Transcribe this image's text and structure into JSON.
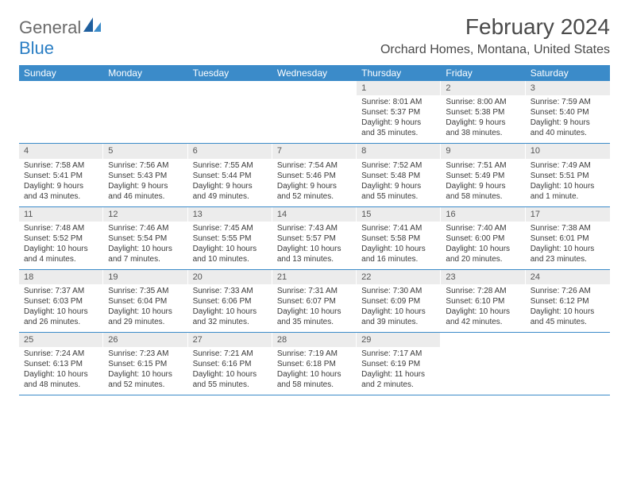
{
  "logo": {
    "textA": "General",
    "textB": "Blue"
  },
  "title": "February 2024",
  "location": "Orchard Homes, Montana, United States",
  "colors": {
    "header_bg": "#3b8bc9",
    "header_text": "#ffffff",
    "daynum_bg": "#ececec",
    "week_border": "#3b8bc9",
    "logo_gray": "#6a6a6a",
    "logo_blue": "#2a7ec4"
  },
  "dayNames": [
    "Sunday",
    "Monday",
    "Tuesday",
    "Wednesday",
    "Thursday",
    "Friday",
    "Saturday"
  ],
  "weeks": [
    [
      null,
      null,
      null,
      null,
      {
        "n": "1",
        "sr": "8:01 AM",
        "ss": "5:37 PM",
        "dl": "9 hours and 35 minutes."
      },
      {
        "n": "2",
        "sr": "8:00 AM",
        "ss": "5:38 PM",
        "dl": "9 hours and 38 minutes."
      },
      {
        "n": "3",
        "sr": "7:59 AM",
        "ss": "5:40 PM",
        "dl": "9 hours and 40 minutes."
      }
    ],
    [
      {
        "n": "4",
        "sr": "7:58 AM",
        "ss": "5:41 PM",
        "dl": "9 hours and 43 minutes."
      },
      {
        "n": "5",
        "sr": "7:56 AM",
        "ss": "5:43 PM",
        "dl": "9 hours and 46 minutes."
      },
      {
        "n": "6",
        "sr": "7:55 AM",
        "ss": "5:44 PM",
        "dl": "9 hours and 49 minutes."
      },
      {
        "n": "7",
        "sr": "7:54 AM",
        "ss": "5:46 PM",
        "dl": "9 hours and 52 minutes."
      },
      {
        "n": "8",
        "sr": "7:52 AM",
        "ss": "5:48 PM",
        "dl": "9 hours and 55 minutes."
      },
      {
        "n": "9",
        "sr": "7:51 AM",
        "ss": "5:49 PM",
        "dl": "9 hours and 58 minutes."
      },
      {
        "n": "10",
        "sr": "7:49 AM",
        "ss": "5:51 PM",
        "dl": "10 hours and 1 minute."
      }
    ],
    [
      {
        "n": "11",
        "sr": "7:48 AM",
        "ss": "5:52 PM",
        "dl": "10 hours and 4 minutes."
      },
      {
        "n": "12",
        "sr": "7:46 AM",
        "ss": "5:54 PM",
        "dl": "10 hours and 7 minutes."
      },
      {
        "n": "13",
        "sr": "7:45 AM",
        "ss": "5:55 PM",
        "dl": "10 hours and 10 minutes."
      },
      {
        "n": "14",
        "sr": "7:43 AM",
        "ss": "5:57 PM",
        "dl": "10 hours and 13 minutes."
      },
      {
        "n": "15",
        "sr": "7:41 AM",
        "ss": "5:58 PM",
        "dl": "10 hours and 16 minutes."
      },
      {
        "n": "16",
        "sr": "7:40 AM",
        "ss": "6:00 PM",
        "dl": "10 hours and 20 minutes."
      },
      {
        "n": "17",
        "sr": "7:38 AM",
        "ss": "6:01 PM",
        "dl": "10 hours and 23 minutes."
      }
    ],
    [
      {
        "n": "18",
        "sr": "7:37 AM",
        "ss": "6:03 PM",
        "dl": "10 hours and 26 minutes."
      },
      {
        "n": "19",
        "sr": "7:35 AM",
        "ss": "6:04 PM",
        "dl": "10 hours and 29 minutes."
      },
      {
        "n": "20",
        "sr": "7:33 AM",
        "ss": "6:06 PM",
        "dl": "10 hours and 32 minutes."
      },
      {
        "n": "21",
        "sr": "7:31 AM",
        "ss": "6:07 PM",
        "dl": "10 hours and 35 minutes."
      },
      {
        "n": "22",
        "sr": "7:30 AM",
        "ss": "6:09 PM",
        "dl": "10 hours and 39 minutes."
      },
      {
        "n": "23",
        "sr": "7:28 AM",
        "ss": "6:10 PM",
        "dl": "10 hours and 42 minutes."
      },
      {
        "n": "24",
        "sr": "7:26 AM",
        "ss": "6:12 PM",
        "dl": "10 hours and 45 minutes."
      }
    ],
    [
      {
        "n": "25",
        "sr": "7:24 AM",
        "ss": "6:13 PM",
        "dl": "10 hours and 48 minutes."
      },
      {
        "n": "26",
        "sr": "7:23 AM",
        "ss": "6:15 PM",
        "dl": "10 hours and 52 minutes."
      },
      {
        "n": "27",
        "sr": "7:21 AM",
        "ss": "6:16 PM",
        "dl": "10 hours and 55 minutes."
      },
      {
        "n": "28",
        "sr": "7:19 AM",
        "ss": "6:18 PM",
        "dl": "10 hours and 58 minutes."
      },
      {
        "n": "29",
        "sr": "7:17 AM",
        "ss": "6:19 PM",
        "dl": "11 hours and 2 minutes."
      },
      null,
      null
    ]
  ]
}
